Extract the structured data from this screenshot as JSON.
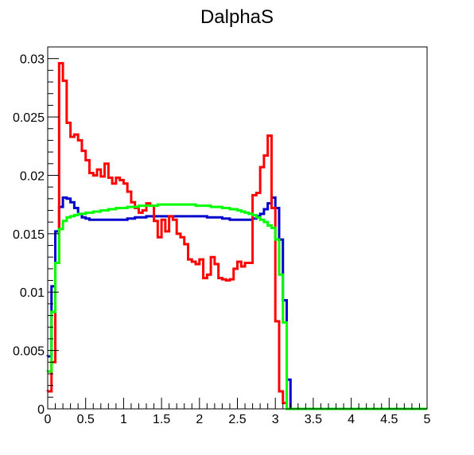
{
  "chart_data": {
    "type": "line",
    "style": "step-histogram",
    "title": "DalphaS",
    "xlabel": "",
    "ylabel": "",
    "xlim": [
      0,
      5
    ],
    "ylim": [
      0,
      0.031
    ],
    "grid": false,
    "x_ticks": [
      0,
      0.5,
      1,
      1.5,
      2,
      2.5,
      3,
      3.5,
      4,
      4.5,
      5
    ],
    "x_tick_labels": [
      "0",
      "0.5",
      "1",
      "1.5",
      "2",
      "2.5",
      "3",
      "3.5",
      "4",
      "4.5",
      "5"
    ],
    "y_ticks": [
      0,
      0.005,
      0.01,
      0.015,
      0.02,
      0.025,
      0.03
    ],
    "y_tick_labels": [
      "0",
      "0.005",
      "0.01",
      "0.015",
      "0.02",
      "0.025",
      "0.03"
    ],
    "bin_width": 0.05,
    "bins": 100,
    "series": [
      {
        "color": "#0000cc",
        "values": [
          0.0045,
          0.0105,
          0.0152,
          0.0173,
          0.0181,
          0.018,
          0.0177,
          0.0172,
          0.0167,
          0.0164,
          0.0163,
          0.0162,
          0.0162,
          0.0162,
          0.0162,
          0.0162,
          0.0162,
          0.0162,
          0.0162,
          0.0162,
          0.0162,
          0.0163,
          0.0163,
          0.0164,
          0.0164,
          0.0164,
          0.0165,
          0.0165,
          0.0165,
          0.0165,
          0.0165,
          0.0165,
          0.0165,
          0.0165,
          0.0165,
          0.0165,
          0.0165,
          0.0165,
          0.0165,
          0.0165,
          0.0165,
          0.0165,
          0.0164,
          0.0164,
          0.0164,
          0.0164,
          0.0163,
          0.0163,
          0.0162,
          0.0162,
          0.0162,
          0.0162,
          0.0162,
          0.0162,
          0.0163,
          0.0165,
          0.0167,
          0.0171,
          0.0176,
          0.0181,
          0.0172,
          0.0145,
          0.0093,
          0.0025,
          0,
          0,
          0,
          0,
          0,
          0,
          0,
          0,
          0,
          0,
          0,
          0,
          0,
          0,
          0,
          0,
          0,
          0,
          0,
          0,
          0,
          0,
          0,
          0,
          0,
          0,
          0,
          0,
          0,
          0,
          0,
          0,
          0,
          0,
          0,
          0
        ]
      },
      {
        "color": "#ff0000",
        "values": [
          0.0015,
          0.004,
          0.0125,
          0.0296,
          0.0281,
          0.0245,
          0.0233,
          0.0235,
          0.023,
          0.0221,
          0.0213,
          0.0202,
          0.02,
          0.0205,
          0.0199,
          0.021,
          0.0198,
          0.0193,
          0.0198,
          0.0196,
          0.0193,
          0.0186,
          0.0177,
          0.0172,
          0.0168,
          0.017,
          0.0176,
          0.0174,
          0.0161,
          0.0147,
          0.0162,
          0.0152,
          0.0165,
          0.0162,
          0.015,
          0.0147,
          0.0141,
          0.0128,
          0.0126,
          0.0124,
          0.0128,
          0.0112,
          0.0115,
          0.013,
          0.0124,
          0.0112,
          0.0111,
          0.011,
          0.0111,
          0.012,
          0.0126,
          0.0122,
          0.0125,
          0.0125,
          0.0183,
          0.0185,
          0.0207,
          0.0217,
          0.0234,
          0.0172,
          0.0075,
          0.0015,
          0.0005,
          0,
          0,
          0,
          0,
          0,
          0,
          0,
          0,
          0,
          0,
          0,
          0,
          0,
          0,
          0,
          0,
          0,
          0,
          0,
          0,
          0,
          0,
          0,
          0,
          0,
          0,
          0,
          0,
          0,
          0,
          0,
          0,
          0,
          0,
          0,
          0,
          0
        ]
      },
      {
        "color": "#00ff00",
        "values": [
          0.0032,
          0.0083,
          0.0125,
          0.0154,
          0.0161,
          0.0164,
          0.0165,
          0.0166,
          0.0167,
          0.0167,
          0.0168,
          0.0168,
          0.0169,
          0.0169,
          0.017,
          0.017,
          0.0171,
          0.0171,
          0.0172,
          0.0172,
          0.0172,
          0.0173,
          0.0173,
          0.0173,
          0.0174,
          0.0174,
          0.0174,
          0.0174,
          0.0174,
          0.0175,
          0.0175,
          0.0175,
          0.0175,
          0.0175,
          0.0175,
          0.0175,
          0.0175,
          0.0175,
          0.0175,
          0.0174,
          0.0174,
          0.0174,
          0.0174,
          0.0173,
          0.0173,
          0.0173,
          0.0172,
          0.0172,
          0.0171,
          0.0171,
          0.017,
          0.0169,
          0.0168,
          0.0167,
          0.0166,
          0.0164,
          0.0162,
          0.016,
          0.0157,
          0.0155,
          0.0145,
          0.0115,
          0.0074,
          0,
          0,
          0,
          0,
          0,
          0,
          0,
          0,
          0,
          0,
          0,
          0,
          0,
          0,
          0,
          0,
          0,
          0,
          0,
          0,
          0,
          0,
          0,
          0,
          0,
          0,
          0,
          0,
          0,
          0,
          0,
          0,
          0,
          0,
          0,
          0,
          0
        ]
      }
    ]
  }
}
